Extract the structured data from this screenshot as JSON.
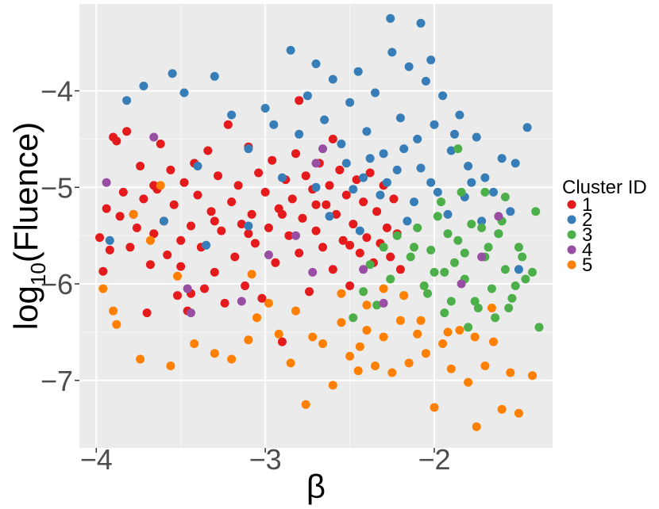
{
  "chart_data": {
    "type": "scatter",
    "title": "",
    "xlabel": "β",
    "ylabel_main": "log",
    "ylabel_sub": "10",
    "ylabel_rest": "(Fluence)",
    "xlim": [
      -4.1,
      -1.3
    ],
    "ylim": [
      -7.7,
      -3.1
    ],
    "x_ticks": [
      -4,
      -3,
      -2
    ],
    "x_tick_labels": [
      "−4",
      "−3",
      "−2"
    ],
    "y_ticks": [
      -4,
      -5,
      -6,
      -7
    ],
    "y_tick_labels": [
      "−4",
      "−5",
      "−6",
      "−7"
    ],
    "grid": true,
    "panel_background": "#ebebeb",
    "legend": {
      "title": "Cluster ID",
      "placement": "right",
      "entries": [
        "1",
        "2",
        "3",
        "4",
        "5"
      ]
    },
    "colors": {
      "1": "#e41a1c",
      "2": "#377eb8",
      "3": "#4daf4a",
      "4": "#984ea3",
      "5": "#ff7f00"
    },
    "series": [
      {
        "name": "1",
        "points": [
          [
            -3.98,
            -5.52
          ],
          [
            -3.96,
            -5.87
          ],
          [
            -3.94,
            -5.22
          ],
          [
            -3.92,
            -5.65
          ],
          [
            -3.9,
            -4.48
          ],
          [
            -3.88,
            -4.52
          ],
          [
            -3.86,
            -5.3
          ],
          [
            -3.84,
            -5.05
          ],
          [
            -3.82,
            -4.42
          ],
          [
            -3.8,
            -5.62
          ],
          [
            -3.78,
            -5.28
          ],
          [
            -3.76,
            -5.42
          ],
          [
            -3.74,
            -4.78
          ],
          [
            -3.72,
            -5.12
          ],
          [
            -3.7,
            -6.3
          ],
          [
            -3.68,
            -5.8
          ],
          [
            -3.66,
            -5.48
          ],
          [
            -3.64,
            -5.02
          ],
          [
            -3.62,
            -4.55
          ],
          [
            -3.6,
            -5.35
          ],
          [
            -3.58,
            -5.7
          ],
          [
            -3.56,
            -4.82
          ],
          [
            -3.54,
            -5.18
          ],
          [
            -3.52,
            -6.12
          ],
          [
            -3.5,
            -5.55
          ],
          [
            -3.48,
            -4.95
          ],
          [
            -3.46,
            -6.28
          ],
          [
            -3.44,
            -5.4
          ],
          [
            -3.42,
            -4.75
          ],
          [
            -3.4,
            -5.08
          ],
          [
            -3.38,
            -5.62
          ],
          [
            -3.36,
            -6.05
          ],
          [
            -3.34,
            -4.62
          ],
          [
            -3.32,
            -5.25
          ],
          [
            -3.3,
            -5.88
          ],
          [
            -3.28,
            -4.88
          ],
          [
            -3.26,
            -5.45
          ],
          [
            -3.24,
            -6.2
          ],
          [
            -3.22,
            -4.35
          ],
          [
            -3.2,
            -5.15
          ],
          [
            -3.18,
            -5.72
          ],
          [
            -3.16,
            -4.98
          ],
          [
            -3.14,
            -5.38
          ],
          [
            -3.12,
            -6.02
          ],
          [
            -3.1,
            -4.58
          ],
          [
            -3.08,
            -5.28
          ],
          [
            -3.06,
            -5.58
          ],
          [
            -3.04,
            -4.85
          ],
          [
            -3.02,
            -6.15
          ],
          [
            -3.0,
            -5.05
          ],
          [
            -2.98,
            -5.42
          ],
          [
            -2.96,
            -4.72
          ],
          [
            -2.94,
            -5.78
          ],
          [
            -2.92,
            -5.22
          ],
          [
            -2.9,
            -6.6
          ],
          [
            -2.88,
            -4.92
          ],
          [
            -2.86,
            -5.5
          ],
          [
            -2.84,
            -5.12
          ],
          [
            -2.82,
            -4.65
          ],
          [
            -2.8,
            -5.68
          ],
          [
            -2.78,
            -5.32
          ],
          [
            -2.76,
            -4.88
          ],
          [
            -2.74,
            -6.08
          ],
          [
            -2.72,
            -5.02
          ],
          [
            -2.7,
            -5.45
          ],
          [
            -2.68,
            -4.75
          ],
          [
            -2.66,
            -5.62
          ],
          [
            -2.64,
            -5.18
          ],
          [
            -2.62,
            -4.98
          ],
          [
            -2.6,
            -5.85
          ],
          [
            -2.58,
            -5.28
          ],
          [
            -2.56,
            -4.82
          ],
          [
            -2.54,
            -5.55
          ],
          [
            -2.52,
            -5.08
          ],
          [
            -2.5,
            -6.02
          ],
          [
            -2.48,
            -5.38
          ],
          [
            -2.46,
            -4.92
          ],
          [
            -2.44,
            -5.68
          ],
          [
            -2.42,
            -5.15
          ],
          [
            -2.4,
            -5.52
          ],
          [
            -2.38,
            -4.85
          ],
          [
            -2.36,
            -5.78
          ],
          [
            -2.34,
            -5.25
          ],
          [
            -2.32,
            -5.58
          ],
          [
            -2.3,
            -4.98
          ],
          [
            -2.28,
            -5.42
          ],
          [
            -2.26,
            -5.72
          ],
          [
            -2.24,
            -5.12
          ],
          [
            -2.22,
            -5.48
          ],
          [
            -2.2,
            -5.85
          ],
          [
            -3.66,
            -4.98
          ],
          [
            -3.5,
            -5.82
          ],
          [
            -3.3,
            -5.35
          ],
          [
            -3.1,
            -5.48
          ],
          [
            -2.9,
            -5.28
          ],
          [
            -2.7,
            -5.18
          ],
          [
            -2.5,
            -5.6
          ],
          [
            -2.8,
            -4.1
          ],
          [
            -2.6,
            -4.5
          ],
          [
            -3.44,
            -6.1
          ]
        ]
      },
      {
        "name": "2",
        "points": [
          [
            -3.92,
            -5.55
          ],
          [
            -3.82,
            -4.1
          ],
          [
            -3.72,
            -3.95
          ],
          [
            -3.6,
            -5.35
          ],
          [
            -3.55,
            -3.82
          ],
          [
            -3.48,
            -4.02
          ],
          [
            -3.4,
            -4.78
          ],
          [
            -3.3,
            -3.85
          ],
          [
            -3.2,
            -4.25
          ],
          [
            -3.1,
            -4.6
          ],
          [
            -3.0,
            -4.18
          ],
          [
            -2.95,
            -4.35
          ],
          [
            -2.85,
            -3.58
          ],
          [
            -2.8,
            -4.45
          ],
          [
            -2.75,
            -4.05
          ],
          [
            -2.7,
            -3.72
          ],
          [
            -2.65,
            -4.3
          ],
          [
            -2.6,
            -3.88
          ],
          [
            -2.55,
            -4.55
          ],
          [
            -2.5,
            -4.12
          ],
          [
            -2.45,
            -3.8
          ],
          [
            -2.4,
            -4.42
          ],
          [
            -2.35,
            -4.02
          ],
          [
            -2.3,
            -4.65
          ],
          [
            -2.25,
            -3.6
          ],
          [
            -2.2,
            -4.28
          ],
          [
            -2.15,
            -3.75
          ],
          [
            -2.1,
            -4.5
          ],
          [
            -2.05,
            -3.9
          ],
          [
            -2.0,
            -4.35
          ],
          [
            -1.95,
            -4.05
          ],
          [
            -1.9,
            -4.62
          ],
          [
            -1.85,
            -4.25
          ],
          [
            -1.8,
            -4.78
          ],
          [
            -1.75,
            -4.48
          ],
          [
            -1.7,
            -4.9
          ],
          [
            -1.65,
            -5.05
          ],
          [
            -1.6,
            -4.7
          ],
          [
            -1.55,
            -5.25
          ],
          [
            -1.45,
            -4.38
          ],
          [
            -2.26,
            -3.25
          ],
          [
            -2.08,
            -3.3
          ],
          [
            -2.02,
            -3.68
          ],
          [
            -1.52,
            -4.75
          ],
          [
            -2.52,
            -4.75
          ],
          [
            -2.42,
            -4.9
          ],
          [
            -2.32,
            -5.08
          ],
          [
            -2.22,
            -4.82
          ],
          [
            -2.12,
            -5.15
          ],
          [
            -2.02,
            -4.95
          ],
          [
            -1.92,
            -5.28
          ],
          [
            -1.82,
            -5.1
          ],
          [
            -1.72,
            -5.35
          ],
          [
            -1.62,
            -5.48
          ],
          [
            -2.48,
            -5.02
          ],
          [
            -2.38,
            -4.7
          ],
          [
            -2.28,
            -4.95
          ],
          [
            -2.18,
            -4.6
          ],
          [
            -2.08,
            -4.8
          ],
          [
            -1.98,
            -5.05
          ],
          [
            -3.1,
            -5.4
          ],
          [
            -2.9,
            -4.9
          ],
          [
            -2.7,
            -5.0
          ],
          [
            -3.35,
            -5.6
          ],
          [
            -2.62,
            -5.3
          ],
          [
            -1.5,
            -5.85
          ],
          [
            -1.88,
            -4.45
          ],
          [
            -1.78,
            -4.95
          ],
          [
            -2.16,
            -5.35
          ],
          [
            -2.44,
            -5.45
          ]
        ]
      },
      {
        "name": "3",
        "points": [
          [
            -2.48,
            -6.35
          ],
          [
            -2.42,
            -6.08
          ],
          [
            -2.38,
            -5.8
          ],
          [
            -2.34,
            -6.22
          ],
          [
            -2.3,
            -5.62
          ],
          [
            -2.26,
            -5.95
          ],
          [
            -2.22,
            -5.5
          ],
          [
            -2.18,
            -6.12
          ],
          [
            -2.14,
            -5.72
          ],
          [
            -2.1,
            -5.42
          ],
          [
            -2.06,
            -6.02
          ],
          [
            -2.02,
            -5.65
          ],
          [
            -1.98,
            -5.3
          ],
          [
            -1.94,
            -5.88
          ],
          [
            -1.9,
            -6.18
          ],
          [
            -1.86,
            -5.55
          ],
          [
            -1.82,
            -5.95
          ],
          [
            -1.78,
            -5.38
          ],
          [
            -1.74,
            -6.25
          ],
          [
            -1.7,
            -5.72
          ],
          [
            -1.66,
            -6.05
          ],
          [
            -1.62,
            -5.48
          ],
          [
            -1.58,
            -5.85
          ],
          [
            -1.54,
            -6.15
          ],
          [
            -1.5,
            -5.62
          ],
          [
            -1.46,
            -5.95
          ],
          [
            -1.42,
            -5.88
          ],
          [
            -1.4,
            -5.25
          ],
          [
            -1.38,
            -6.45
          ],
          [
            -1.86,
            -4.6
          ],
          [
            -1.96,
            -5.15
          ],
          [
            -1.84,
            -5.05
          ],
          [
            -1.72,
            -5.42
          ],
          [
            -1.6,
            -5.35
          ],
          [
            -1.52,
            -6.02
          ],
          [
            -1.64,
            -6.35
          ],
          [
            -1.76,
            -6.18
          ],
          [
            -1.88,
            -5.78
          ],
          [
            -2.0,
            -5.88
          ],
          [
            -2.12,
            -5.62
          ],
          [
            -1.8,
            -6.45
          ],
          [
            -1.68,
            -5.62
          ],
          [
            -1.56,
            -6.25
          ],
          [
            -1.92,
            -5.48
          ],
          [
            -2.04,
            -6.1
          ],
          [
            -1.7,
            -5.05
          ],
          [
            -1.82,
            -5.68
          ],
          [
            -1.94,
            -6.3
          ],
          [
            -1.58,
            -5.1
          ],
          [
            -1.48,
            -5.72
          ]
        ]
      },
      {
        "name": "4",
        "points": [
          [
            -3.94,
            -4.95
          ],
          [
            -3.66,
            -4.48
          ],
          [
            -3.46,
            -6.05
          ],
          [
            -3.44,
            -6.3
          ],
          [
            -3.14,
            -6.18
          ],
          [
            -2.98,
            -5.7
          ],
          [
            -2.72,
            -5.88
          ],
          [
            -2.7,
            -4.75
          ],
          [
            -2.66,
            -4.6
          ],
          [
            -2.42,
            -5.85
          ],
          [
            -1.84,
            -6.0
          ],
          [
            -1.72,
            -5.72
          ],
          [
            -2.82,
            -5.5
          ],
          [
            -2.3,
            -6.2
          ],
          [
            -1.62,
            -5.3
          ]
        ]
      },
      {
        "name": "5",
        "points": [
          [
            -3.96,
            -6.05
          ],
          [
            -3.9,
            -6.28
          ],
          [
            -3.88,
            -6.42
          ],
          [
            -3.74,
            -6.78
          ],
          [
            -3.62,
            -4.98
          ],
          [
            -3.56,
            -6.85
          ],
          [
            -3.52,
            -5.92
          ],
          [
            -3.42,
            -6.62
          ],
          [
            -3.3,
            -6.72
          ],
          [
            -3.2,
            -6.78
          ],
          [
            -3.1,
            -6.58
          ],
          [
            -3.05,
            -6.35
          ],
          [
            -2.98,
            -6.2
          ],
          [
            -2.92,
            -6.52
          ],
          [
            -2.85,
            -6.82
          ],
          [
            -2.76,
            -7.25
          ],
          [
            -2.72,
            -6.55
          ],
          [
            -2.66,
            -6.62
          ],
          [
            -2.6,
            -7.05
          ],
          [
            -2.55,
            -6.4
          ],
          [
            -2.5,
            -6.75
          ],
          [
            -2.45,
            -6.9
          ],
          [
            -2.4,
            -6.48
          ],
          [
            -2.35,
            -6.85
          ],
          [
            -2.3,
            -6.55
          ],
          [
            -2.25,
            -6.92
          ],
          [
            -2.2,
            -6.38
          ],
          [
            -2.15,
            -6.82
          ],
          [
            -2.1,
            -6.52
          ],
          [
            -2.05,
            -6.72
          ],
          [
            -2.0,
            -7.28
          ],
          [
            -1.95,
            -6.62
          ],
          [
            -1.9,
            -6.88
          ],
          [
            -1.85,
            -6.48
          ],
          [
            -1.8,
            -7.02
          ],
          [
            -1.75,
            -7.48
          ],
          [
            -1.7,
            -6.85
          ],
          [
            -1.65,
            -6.6
          ],
          [
            -1.6,
            -7.3
          ],
          [
            -1.55,
            -6.92
          ],
          [
            -1.5,
            -7.34
          ],
          [
            -1.42,
            -6.95
          ],
          [
            -2.4,
            -6.22
          ],
          [
            -2.3,
            -6.05
          ],
          [
            -2.18,
            -6.12
          ],
          [
            -3.08,
            -5.9
          ],
          [
            -2.82,
            -6.28
          ],
          [
            -3.78,
            -5.28
          ],
          [
            -3.68,
            -5.55
          ],
          [
            -1.92,
            -6.5
          ],
          [
            -2.08,
            -6.38
          ],
          [
            -1.76,
            -6.55
          ],
          [
            -1.66,
            -6.25
          ],
          [
            -2.55,
            -6.1
          ],
          [
            -2.44,
            -6.65
          ]
        ]
      }
    ]
  }
}
